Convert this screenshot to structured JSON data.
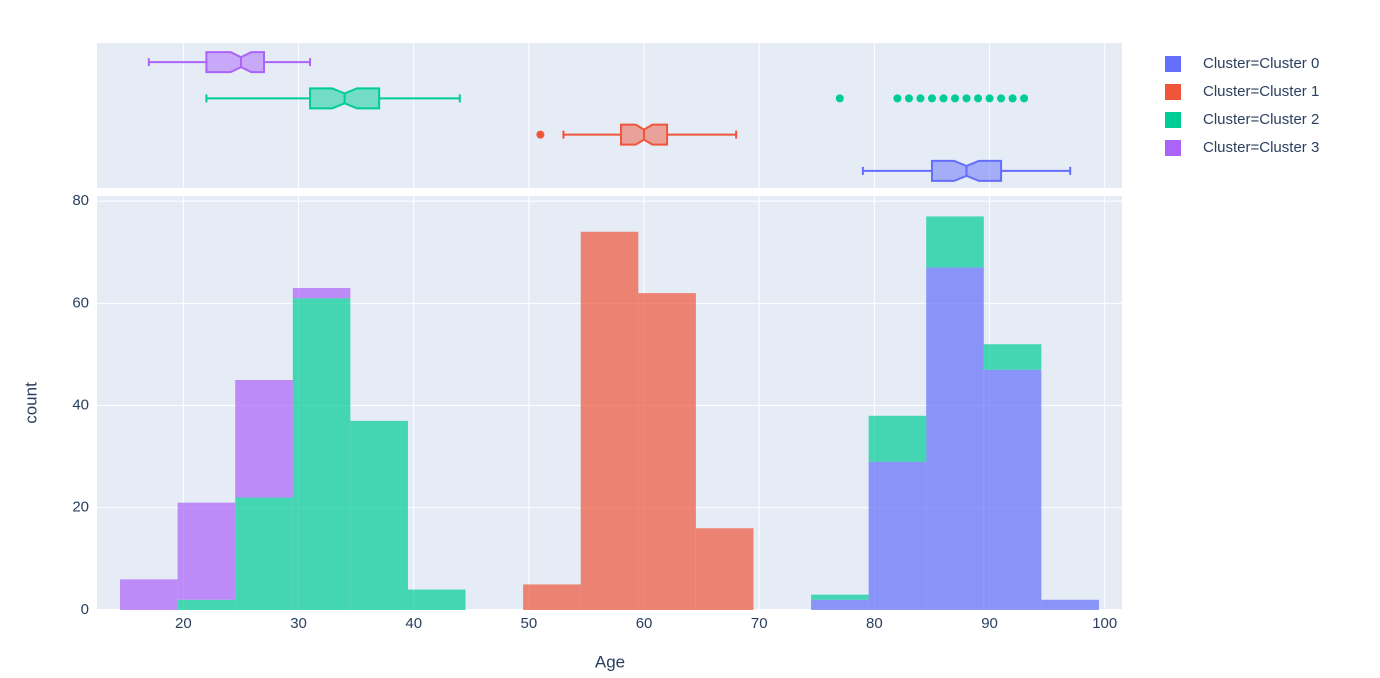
{
  "chart_data": {
    "type": "histogram",
    "x_label": "Age",
    "y_label": "count",
    "xlim": [
      12.5,
      101.5
    ],
    "ylim": [
      0,
      81
    ],
    "xticks": [
      20,
      30,
      40,
      50,
      60,
      70,
      80,
      90,
      100
    ],
    "yticks": [
      0,
      20,
      40,
      60,
      80
    ],
    "grid": true,
    "legend": "right",
    "barmode": "stack",
    "bins": [
      14.5,
      19.5,
      24.5,
      29.5,
      34.5,
      39.5,
      44.5,
      49.5,
      54.5,
      59.5,
      64.5,
      69.5,
      74.5,
      79.5,
      84.5,
      89.5,
      94.5,
      99.5
    ],
    "series": [
      {
        "name": "Cluster=Cluster 0",
        "color": "#636efa",
        "values": [
          0,
          0,
          0,
          0,
          0,
          0,
          0,
          0,
          0,
          0,
          0,
          0,
          2,
          29,
          67,
          47,
          2
        ],
        "box": {
          "lowerfence": 79,
          "q1": 85,
          "median": 88,
          "q3": 91,
          "upperfence": 97,
          "outliers": []
        }
      },
      {
        "name": "Cluster=Cluster 1",
        "color": "#ef553b",
        "values": [
          0,
          0,
          0,
          0,
          0,
          0,
          0,
          5,
          74,
          62,
          16,
          0,
          0,
          0,
          0,
          0,
          0
        ],
        "box": {
          "lowerfence": 53,
          "q1": 58,
          "median": 60,
          "q3": 62,
          "upperfence": 68,
          "outliers": [
            51
          ]
        }
      },
      {
        "name": "Cluster=Cluster 2",
        "color": "#00cc96",
        "values": [
          0,
          2,
          22,
          61,
          37,
          4,
          0,
          0,
          0,
          0,
          0,
          0,
          1,
          9,
          10,
          5,
          0
        ],
        "box": {
          "lowerfence": 22,
          "q1": 31,
          "median": 34,
          "q3": 37,
          "upperfence": 44,
          "outliers": [
            77,
            82,
            83,
            84,
            85,
            86,
            87,
            88,
            89,
            90,
            91,
            92,
            93
          ]
        }
      },
      {
        "name": "Cluster=Cluster 3",
        "color": "#ab63fa",
        "values": [
          6,
          19,
          23,
          2,
          0,
          0,
          0,
          0,
          0,
          0,
          0,
          0,
          0,
          0,
          0,
          0,
          0
        ],
        "box": {
          "lowerfence": 17,
          "q1": 22,
          "median": 25,
          "q3": 27,
          "upperfence": 31,
          "outliers": []
        }
      }
    ]
  }
}
